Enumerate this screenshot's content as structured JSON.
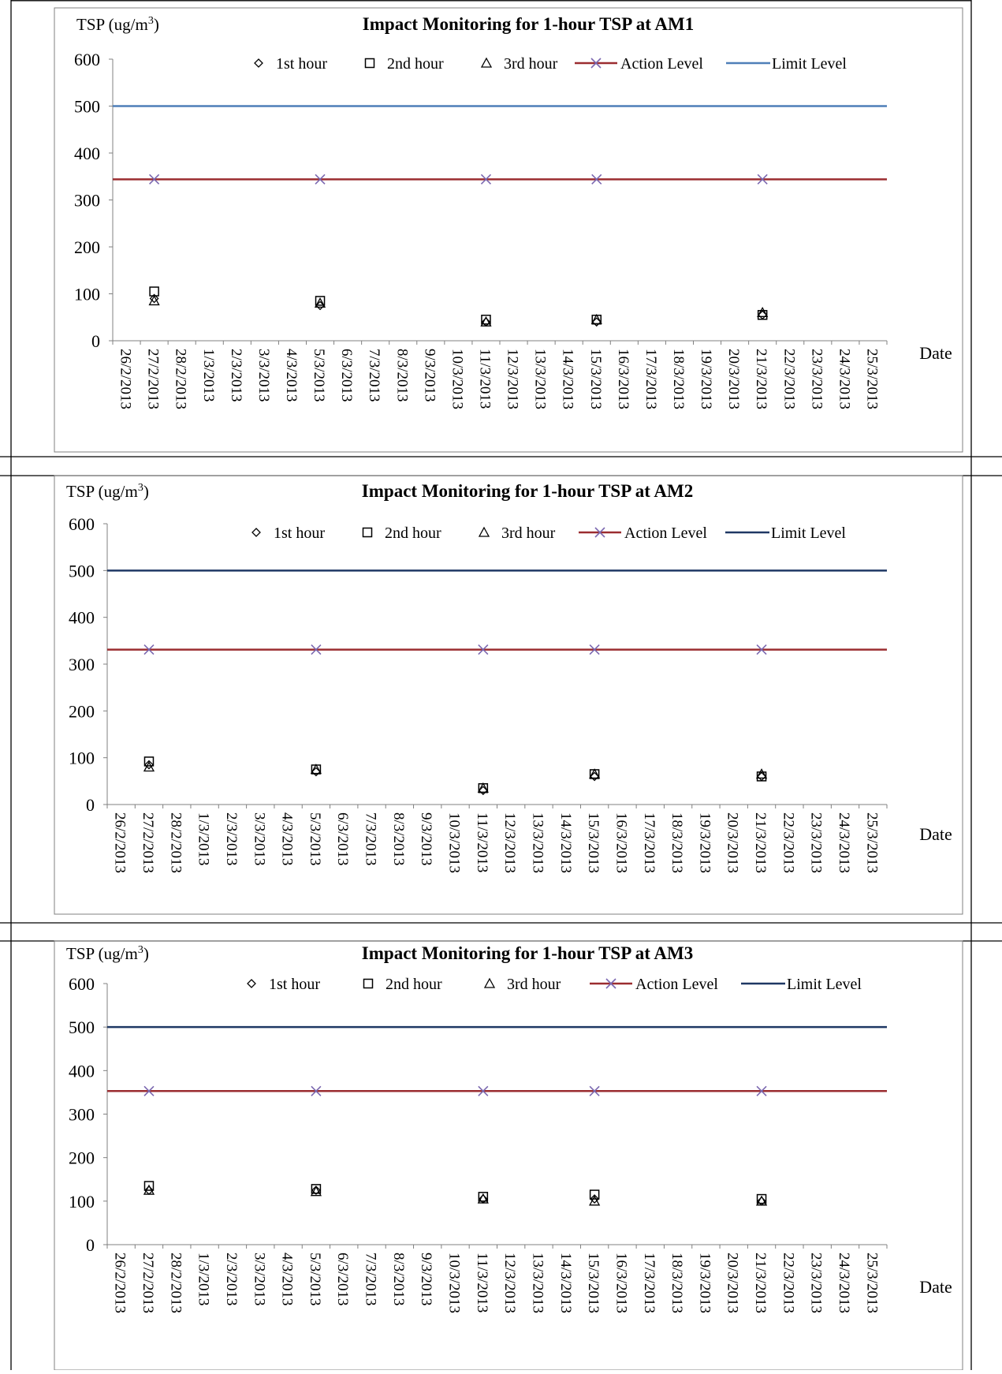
{
  "colors": {
    "action_level": "#9B2D30",
    "action_marker": "#7B68B0",
    "limit_level_am1": "#4F7FB8",
    "limit_level_am23": "#1F3864",
    "axis": "#808080",
    "frame": "#808080",
    "table_border": "#000000"
  },
  "chart_data": [
    {
      "type": "scatter",
      "title": "Impact Monitoring for 1-hour TSP at AM1",
      "ylabel": "TSP (ug/m3)",
      "ylabel_parts": {
        "main": "TSP (ug/m",
        "sup": "3",
        "tail": ")"
      },
      "xlabel": "Date",
      "ylim": [
        0,
        600
      ],
      "yticks": [
        "0",
        "100",
        "200",
        "300",
        "400",
        "500",
        "600"
      ],
      "x_categories": [
        "26/2/2013",
        "27/2/2013",
        "28/2/2013",
        "1/3/2013",
        "2/3/2013",
        "3/3/2013",
        "4/3/2013",
        "5/3/2013",
        "6/3/2013",
        "7/3/2013",
        "8/3/2013",
        "9/3/2013",
        "10/3/2013",
        "11/3/2013",
        "12/3/2013",
        "13/3/2013",
        "14/3/2013",
        "15/3/2013",
        "16/3/2013",
        "17/3/2013",
        "18/3/2013",
        "19/3/2013",
        "20/3/2013",
        "21/3/2013",
        "22/3/2013",
        "23/3/2013",
        "24/3/2013",
        "25/3/2013"
      ],
      "legend_placement": "top-center",
      "series": [
        {
          "name": "1st hour",
          "marker": "diamond",
          "x": [
            "27/2/2013",
            "5/3/2013",
            "11/3/2013",
            "15/3/2013",
            "21/3/2013"
          ],
          "values": [
            90,
            75,
            40,
            40,
            55
          ]
        },
        {
          "name": "2nd hour",
          "marker": "square",
          "x": [
            "27/2/2013",
            "5/3/2013",
            "11/3/2013",
            "15/3/2013",
            "21/3/2013"
          ],
          "values": [
            105,
            85,
            45,
            45,
            55
          ]
        },
        {
          "name": "3rd hour",
          "marker": "triangle",
          "x": [
            "27/2/2013",
            "5/3/2013",
            "11/3/2013",
            "15/3/2013",
            "21/3/2013"
          ],
          "values": [
            85,
            80,
            40,
            45,
            60
          ]
        },
        {
          "name": "Action Level",
          "kind": "line",
          "value": 344,
          "markers_at": [
            "27/2/2013",
            "5/3/2013",
            "11/3/2013",
            "15/3/2013",
            "21/3/2013"
          ]
        },
        {
          "name": "Limit Level",
          "kind": "line",
          "value": 500
        }
      ]
    },
    {
      "type": "scatter",
      "title": "Impact Monitoring for 1-hour TSP at AM2",
      "ylabel": "TSP (ug/m3)",
      "ylabel_parts": {
        "main": "TSP (ug/m",
        "sup": "3",
        "tail": ")"
      },
      "xlabel": "Date",
      "ylim": [
        0,
        600
      ],
      "yticks": [
        "0",
        "100",
        "200",
        "300",
        "400",
        "500",
        "600"
      ],
      "x_categories": [
        "26/2/2013",
        "27/2/2013",
        "28/2/2013",
        "1/3/2013",
        "2/3/2013",
        "3/3/2013",
        "4/3/2013",
        "5/3/2013",
        "6/3/2013",
        "7/3/2013",
        "8/3/2013",
        "9/3/2013",
        "10/3/2013",
        "11/3/2013",
        "12/3/2013",
        "13/3/2013",
        "14/3/2013",
        "15/3/2013",
        "16/3/2013",
        "17/3/2013",
        "18/3/2013",
        "19/3/2013",
        "20/3/2013",
        "21/3/2013",
        "22/3/2013",
        "23/3/2013",
        "24/3/2013",
        "25/3/2013"
      ],
      "legend_placement": "top-center",
      "series": [
        {
          "name": "1st hour",
          "marker": "diamond",
          "x": [
            "27/2/2013",
            "5/3/2013",
            "11/3/2013",
            "15/3/2013",
            "21/3/2013"
          ],
          "values": [
            85,
            70,
            30,
            60,
            60
          ]
        },
        {
          "name": "2nd hour",
          "marker": "square",
          "x": [
            "27/2/2013",
            "5/3/2013",
            "11/3/2013",
            "15/3/2013",
            "21/3/2013"
          ],
          "values": [
            92,
            75,
            35,
            65,
            60
          ]
        },
        {
          "name": "3rd hour",
          "marker": "triangle",
          "x": [
            "27/2/2013",
            "5/3/2013",
            "11/3/2013",
            "15/3/2013",
            "21/3/2013"
          ],
          "values": [
            80,
            75,
            35,
            65,
            65
          ]
        },
        {
          "name": "Action Level",
          "kind": "line",
          "value": 331,
          "markers_at": [
            "27/2/2013",
            "5/3/2013",
            "11/3/2013",
            "15/3/2013",
            "21/3/2013"
          ]
        },
        {
          "name": "Limit Level",
          "kind": "line",
          "value": 500
        }
      ]
    },
    {
      "type": "scatter",
      "title": "Impact Monitoring for 1-hour TSP at AM3",
      "ylabel": "TSP (ug/m3)",
      "ylabel_parts": {
        "main": "TSP (ug/m",
        "sup": "3",
        "tail": ")"
      },
      "xlabel": "Date",
      "ylim": [
        0,
        600
      ],
      "yticks": [
        "0",
        "100",
        "200",
        "300",
        "400",
        "500",
        "600"
      ],
      "x_categories": [
        "26/2/2013",
        "27/2/2013",
        "28/2/2013",
        "1/3/2013",
        "2/3/2013",
        "3/3/2013",
        "4/3/2013",
        "5/3/2013",
        "6/3/2013",
        "7/3/2013",
        "8/3/2013",
        "9/3/2013",
        "10/3/2013",
        "11/3/2013",
        "12/3/2013",
        "13/3/2013",
        "14/3/2013",
        "15/3/2013",
        "16/3/2013",
        "17/3/2013",
        "18/3/2013",
        "19/3/2013",
        "20/3/2013",
        "21/3/2013",
        "22/3/2013",
        "23/3/2013",
        "24/3/2013",
        "25/3/2013"
      ],
      "legend_placement": "top-center",
      "series": [
        {
          "name": "1st hour",
          "marker": "diamond",
          "x": [
            "27/2/2013",
            "5/3/2013",
            "11/3/2013",
            "15/3/2013",
            "21/3/2013"
          ],
          "values": [
            125,
            125,
            105,
            105,
            100
          ]
        },
        {
          "name": "2nd hour",
          "marker": "square",
          "x": [
            "27/2/2013",
            "5/3/2013",
            "11/3/2013",
            "15/3/2013",
            "21/3/2013"
          ],
          "values": [
            135,
            128,
            110,
            115,
            105
          ]
        },
        {
          "name": "3rd hour",
          "marker": "triangle",
          "x": [
            "27/2/2013",
            "5/3/2013",
            "11/3/2013",
            "15/3/2013",
            "21/3/2013"
          ],
          "values": [
            125,
            122,
            105,
            100,
            100
          ]
        },
        {
          "name": "Action Level",
          "kind": "line",
          "value": 353,
          "markers_at": [
            "27/2/2013",
            "5/3/2013",
            "11/3/2013",
            "15/3/2013",
            "21/3/2013"
          ]
        },
        {
          "name": "Limit Level",
          "kind": "line",
          "value": 500
        }
      ]
    }
  ]
}
